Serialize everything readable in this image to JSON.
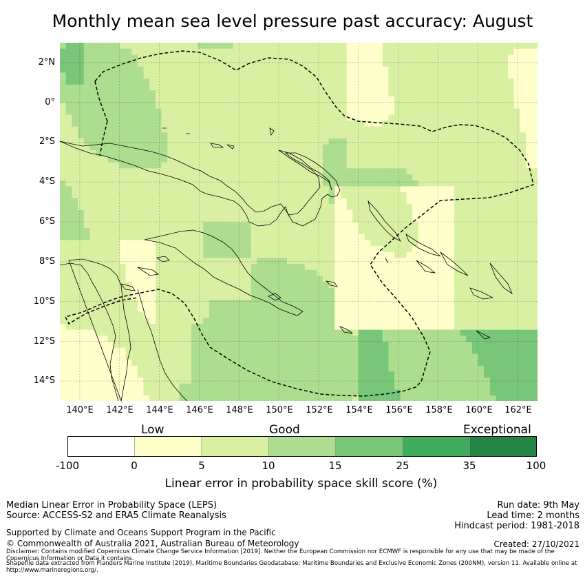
{
  "title": "Monthly mean sea level pressure past accuracy: August",
  "map": {
    "lat_labels": [
      "2°N",
      "0°",
      "2°S",
      "4°S",
      "6°S",
      "8°S",
      "10°S",
      "12°S",
      "14°S"
    ],
    "lon_labels": [
      "140°E",
      "142°E",
      "144°E",
      "146°E",
      "148°E",
      "150°E",
      "152°E",
      "154°E",
      "156°E",
      "158°E",
      "160°E",
      "162°E"
    ],
    "lat_values": [
      2,
      0,
      -2,
      -4,
      -6,
      -8,
      -10,
      -12,
      -14
    ],
    "lon_values": [
      140,
      142,
      144,
      146,
      148,
      150,
      152,
      154,
      156,
      158,
      160,
      162
    ],
    "extent": {
      "lon_min": 139,
      "lon_max": 163,
      "lat_min": -15,
      "lat_max": 3
    },
    "eez_color": "#000000",
    "coast_color": "#000000"
  },
  "legend": {
    "categories": [
      "Low",
      "Good",
      "Exceptional"
    ],
    "ticks": [
      "-100",
      "0",
      "5",
      "10",
      "15",
      "25",
      "35",
      "100"
    ],
    "bins": [
      {
        "from": -100,
        "to": 0,
        "color": "#ffffff"
      },
      {
        "from": 0,
        "to": 5,
        "color": "#ffffcc"
      },
      {
        "from": 5,
        "to": 10,
        "color": "#d9f0a3"
      },
      {
        "from": 10,
        "to": 15,
        "color": "#addd8e"
      },
      {
        "from": 15,
        "to": 25,
        "color": "#78c679"
      },
      {
        "from": 25,
        "to": 35,
        "color": "#41ab5d"
      },
      {
        "from": 35,
        "to": 100,
        "color": "#238443"
      }
    ],
    "label": "Linear error in probability space skill score (%)"
  },
  "footer": {
    "left1": "Median Linear Error in Probability Space (LEPS)",
    "left2": "Source: ACCESS-S2 and ERA5 Climate Reanalysis",
    "support": "Supported by Climate and Oceans Support Program in the Pacific",
    "copyright": "© Commonwealth of Australia 2021, Australian Bureau of Meteorology",
    "run_date": "Run date: 9th May",
    "lead_time": "Lead time: 2 months",
    "hindcast": "Hindcast period: 1981-2018",
    "created": "Created: 27/10/2021",
    "disclaimer": "Disclaimer: Contains modified Copernicus Climate Change Service Information [2019]. Neither the European Commission nor ECMWF is responsible for any use that may be made of the Copernicus Information or Data it contains.",
    "shapefile": "Shapefile data extracted from Flanders Marine Institute (2019), Maritime Boundaries Geodatabase: Maritime Boundaries and Exclusive Economic Zones (200NM), version 11. Available online at http://www.marineregions.org/."
  }
}
